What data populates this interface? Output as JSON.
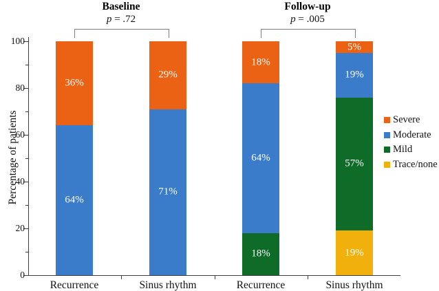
{
  "chart_data": {
    "type": "bar",
    "stacked": true,
    "categories": [
      "Recurrence",
      "Sinus rhythm",
      "Recurrence",
      "Sinus rhythm"
    ],
    "series": [
      {
        "name": "Severe",
        "color": "#EB6214",
        "values": [
          36,
          29,
          18,
          5
        ]
      },
      {
        "name": "Moderate",
        "color": "#3A7CC9",
        "values": [
          64,
          71,
          64,
          19
        ]
      },
      {
        "name": "Mild",
        "color": "#0E6B28",
        "values": [
          0,
          0,
          18,
          57
        ]
      },
      {
        "name": "Trace/none",
        "color": "#F2B00D",
        "values": [
          0,
          0,
          0,
          19
        ]
      }
    ],
    "stack_order_bottom_to_top": [
      "Trace/none",
      "Mild",
      "Moderate",
      "Severe"
    ],
    "segment_label_format": "{value}%",
    "group_headers": [
      {
        "label": "Baseline",
        "p_text": "p = .72",
        "bars": [
          0,
          1
        ]
      },
      {
        "label": "Follow-up",
        "p_text": "p = .005",
        "bars": [
          2,
          3
        ]
      }
    ],
    "ylabel": "Percentage of patients",
    "ylim": [
      0,
      100
    ],
    "yticks_major": [
      0,
      20,
      40,
      60,
      80,
      100
    ],
    "yticks_minor": [
      10,
      30,
      50,
      70,
      90
    ],
    "legend_position": "right",
    "legend_order": [
      "Severe",
      "Moderate",
      "Mild",
      "Trace/none"
    ],
    "colors": {
      "axis": "#3d3d3d",
      "bracket": "#7f7f7f",
      "segment_text": "#ffffff"
    }
  }
}
